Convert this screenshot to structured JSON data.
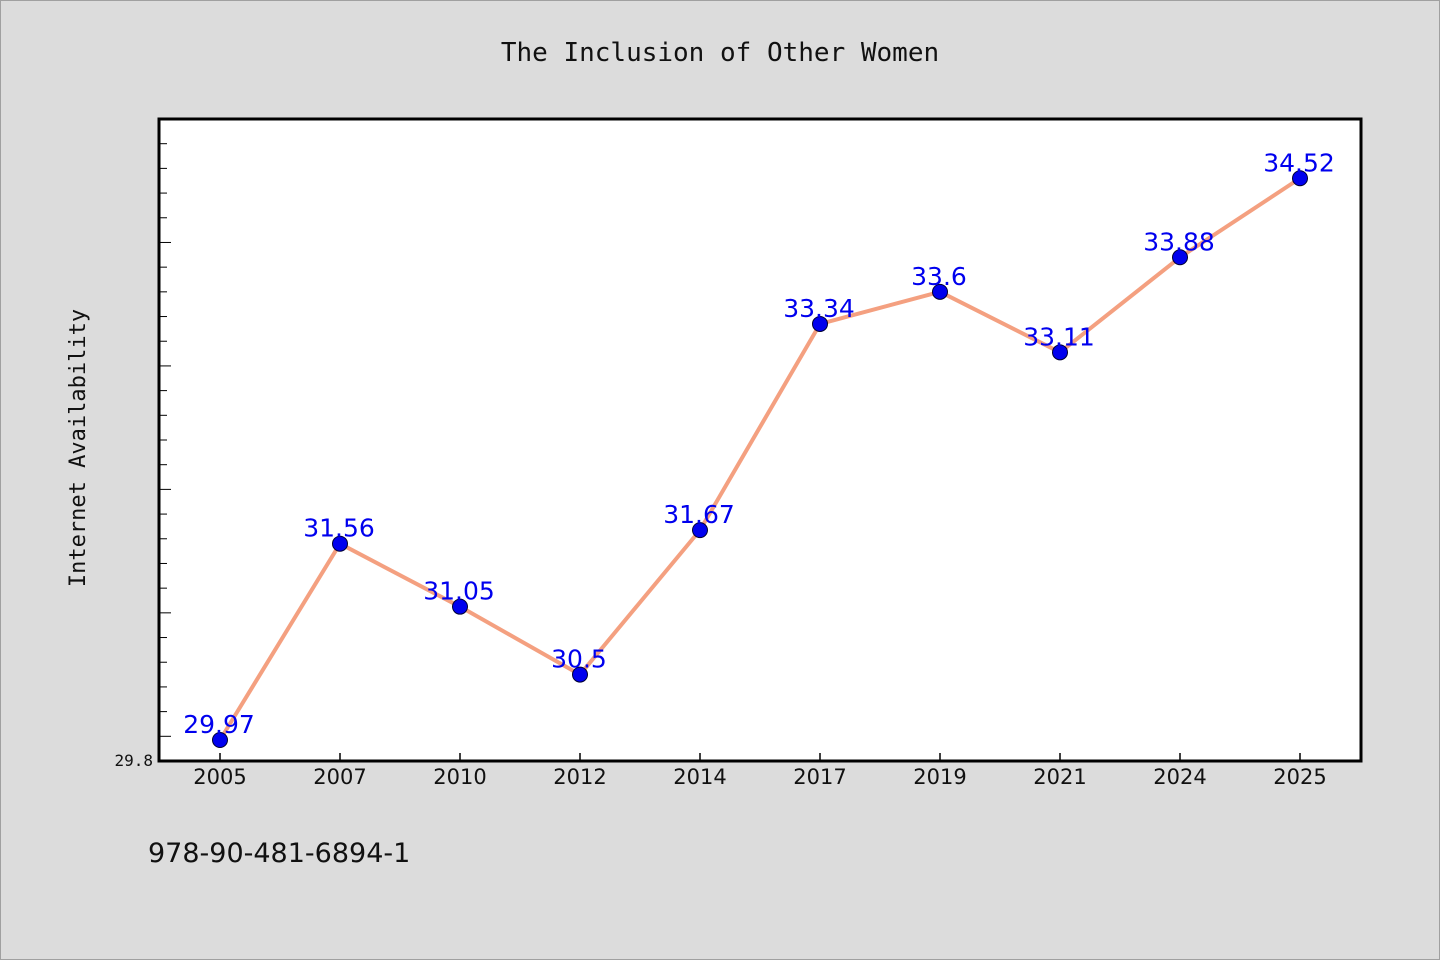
{
  "chart_data": {
    "type": "line",
    "title": "The Inclusion of Other Women",
    "xlabel": "",
    "ylabel": "Internet Availability",
    "categories": [
      "2005",
      "2007",
      "2010",
      "2012",
      "2014",
      "2017",
      "2019",
      "2021",
      "2024",
      "2025"
    ],
    "series": [
      {
        "values": [
          29.97,
          31.56,
          31.05,
          30.5,
          31.67,
          33.34,
          33.6,
          33.11,
          33.88,
          34.52
        ]
      }
    ],
    "data_labels": [
      "29.97",
      "31.56",
      "31.05",
      "30.5",
      "31.67",
      "33.34",
      "33.6",
      "33.11",
      "33.88",
      "34.52"
    ],
    "ylim": [
      29.8,
      35.0
    ],
    "y_tick_labels": [
      "29.8"
    ],
    "grid": false,
    "legend": "none",
    "colors": {
      "line": "#f4a080",
      "marker": "#0000ee",
      "data_label": "#0000ee",
      "plot_background": "#ffffff",
      "page_background": "#dcdcdc"
    }
  },
  "footer": {
    "isbn": "978-90-481-6894-1"
  }
}
